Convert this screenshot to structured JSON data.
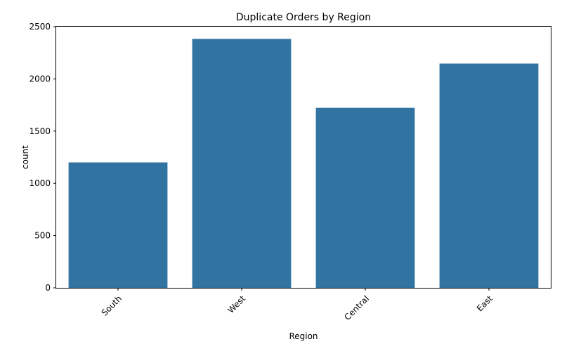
{
  "chart_data": {
    "type": "bar",
    "title": "Duplicate Orders by Region",
    "xlabel": "Region",
    "ylabel": "count",
    "categories": [
      "South",
      "West",
      "Central",
      "East"
    ],
    "values": [
      1200,
      2383,
      1723,
      2147
    ],
    "ylim": [
      0,
      2500
    ],
    "yticks": [
      0,
      500,
      1000,
      1500,
      2000,
      2500
    ],
    "xtick_rotation_deg": 45,
    "grid": false,
    "legend": "none",
    "bar_color": "#3274a1"
  }
}
